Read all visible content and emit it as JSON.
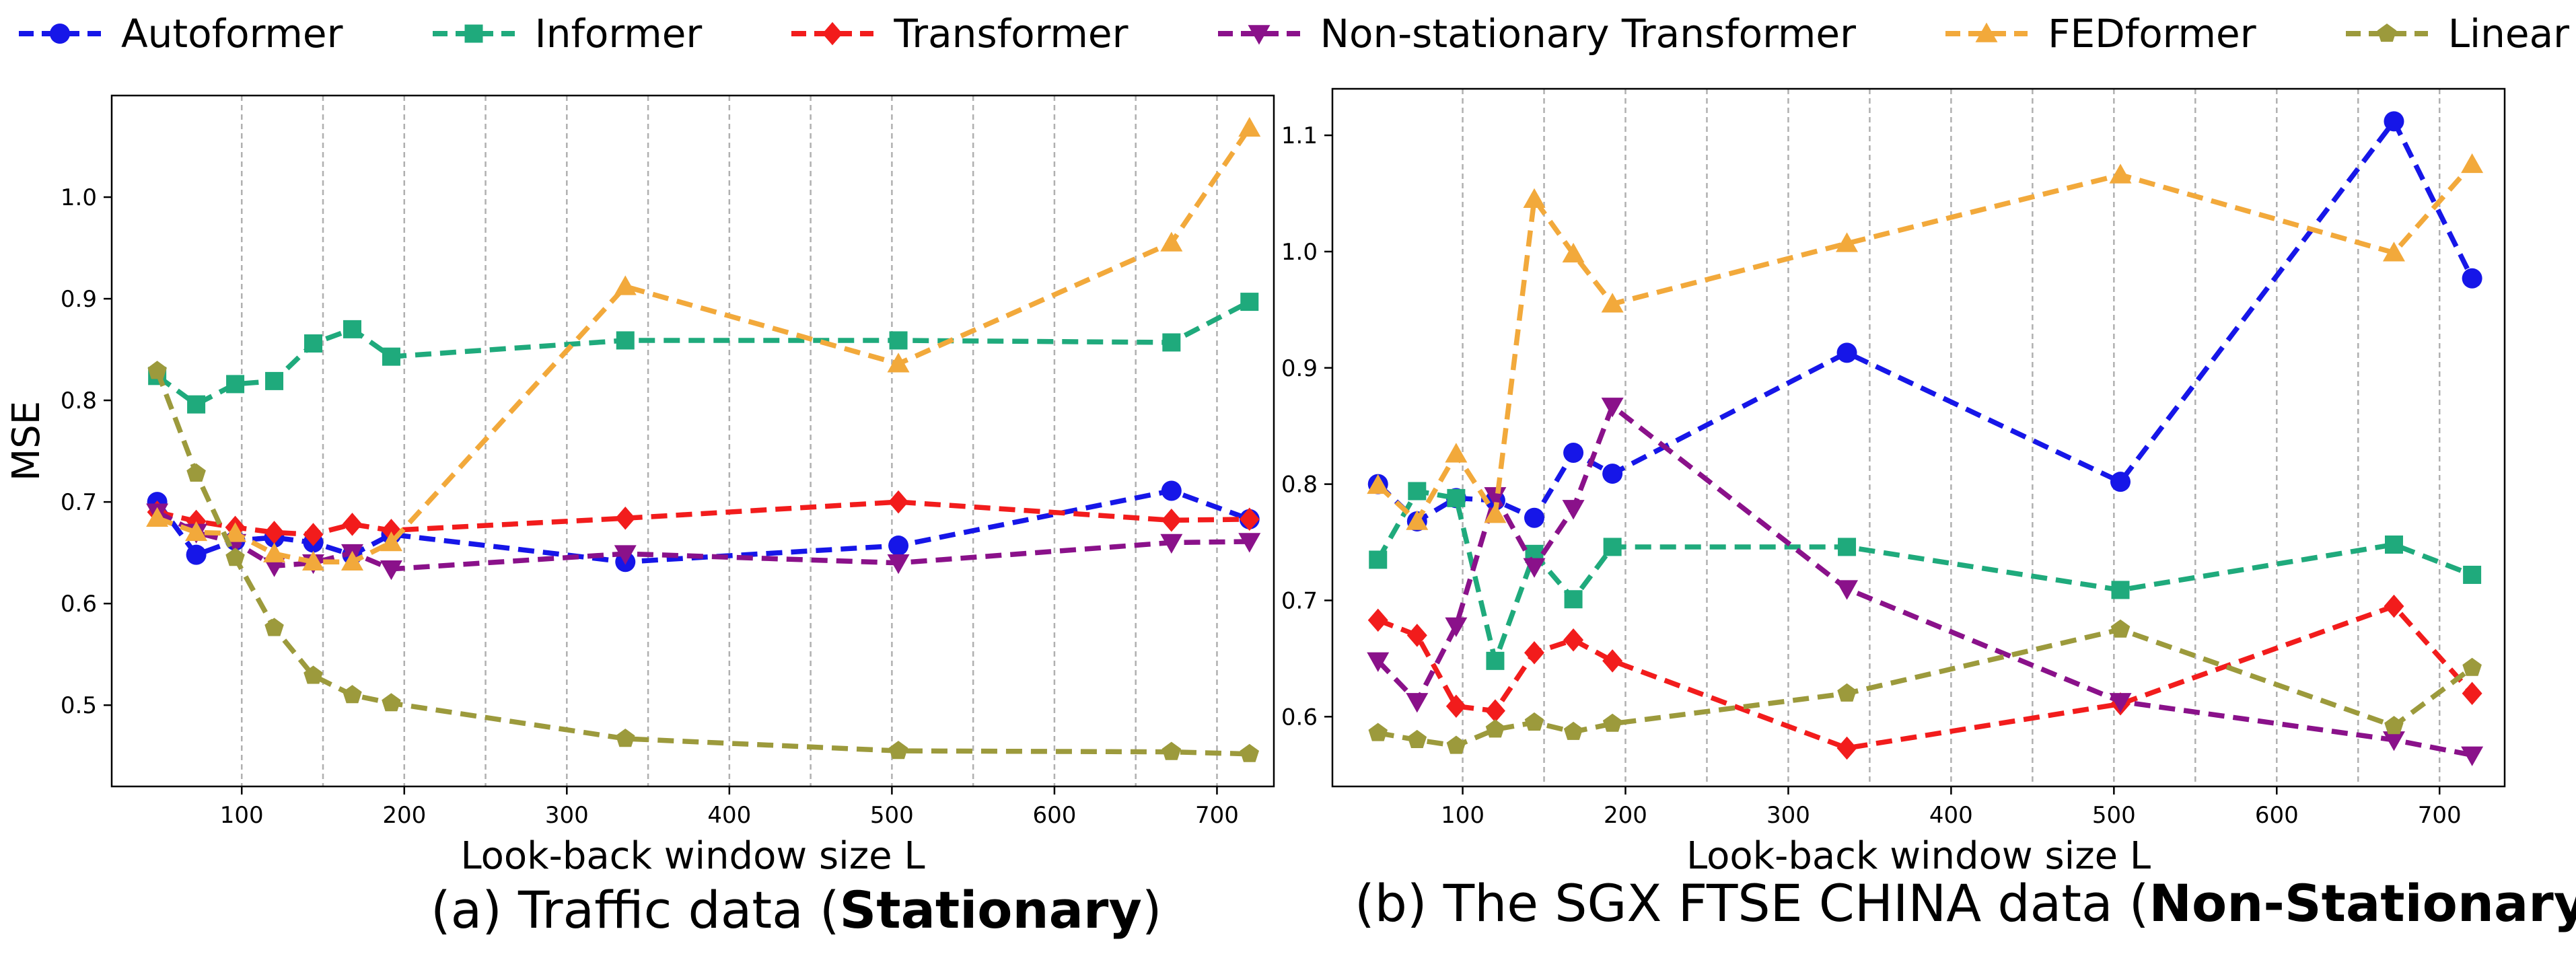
{
  "legend": [
    {
      "name": "Autoformer",
      "color": "#1616e8",
      "marker": "circle"
    },
    {
      "name": "Informer",
      "color": "#1faa7c",
      "marker": "square"
    },
    {
      "name": "Transformer",
      "color": "#f21c1c",
      "marker": "diamond"
    },
    {
      "name": "Non-stationary Transformer",
      "color": "#8a118a",
      "marker": "triangle-down"
    },
    {
      "name": "FEDformer",
      "color": "#f2a93b",
      "marker": "triangle-up"
    },
    {
      "name": "Linear",
      "color": "#9c9a3c",
      "marker": "pentagon"
    }
  ],
  "captions": {
    "a": {
      "prefix": "(a) Traffic data (",
      "bold": "Stationary",
      "suffix": ")"
    },
    "b": {
      "prefix": "(b) The SGX FTSE CHINA data (",
      "bold": "Non-Stationary",
      "suffix": ")"
    }
  },
  "chart_data": [
    {
      "type": "line",
      "xlabel": "Look-back window size L",
      "ylabel": "MSE",
      "x": [
        48,
        72,
        96,
        120,
        144,
        168,
        192,
        336,
        504,
        672,
        720
      ],
      "xlim": [
        20,
        735
      ],
      "ylim": [
        0.42,
        1.1
      ],
      "xticks": [
        100,
        200,
        300,
        400,
        500,
        600,
        700
      ],
      "yticks": [
        0.5,
        0.6,
        0.7,
        0.8,
        0.9,
        1.0
      ],
      "grid": "vertical dashed at x = 100, 150, 200, …, 700",
      "series": [
        {
          "name": "Autoformer",
          "values": [
            0.7,
            0.648,
            0.662,
            0.665,
            0.66,
            0.648,
            0.668,
            0.641,
            0.657,
            0.711,
            0.683
          ]
        },
        {
          "name": "Informer",
          "values": [
            0.824,
            0.796,
            0.816,
            0.819,
            0.856,
            0.87,
            0.843,
            0.859,
            0.859,
            0.857,
            0.897
          ]
        },
        {
          "name": "Transformer",
          "values": [
            0.69,
            0.681,
            0.675,
            0.67,
            0.668,
            0.678,
            0.672,
            0.684,
            0.7,
            0.682,
            0.683
          ]
        },
        {
          "name": "Non-stationary Transformer",
          "values": [
            0.69,
            0.67,
            0.66,
            0.637,
            0.64,
            0.65,
            0.634,
            0.649,
            0.64,
            0.66,
            0.661
          ]
        },
        {
          "name": "FEDformer",
          "values": [
            0.684,
            0.67,
            0.669,
            0.649,
            0.641,
            0.641,
            0.66,
            0.912,
            0.836,
            0.955,
            1.068
          ]
        },
        {
          "name": "Linear",
          "values": [
            0.829,
            0.728,
            0.645,
            0.576,
            0.529,
            0.51,
            0.502,
            0.467,
            0.455,
            0.454,
            0.452
          ]
        }
      ]
    },
    {
      "type": "line",
      "xlabel": "Look-back window size L",
      "ylabel": "MSE",
      "x": [
        48,
        72,
        96,
        120,
        144,
        168,
        192,
        336,
        504,
        672,
        720
      ],
      "xlim": [
        20,
        740
      ],
      "ylim": [
        0.54,
        1.14
      ],
      "xticks": [
        100,
        200,
        300,
        400,
        500,
        600,
        700
      ],
      "yticks": [
        0.6,
        0.7,
        0.8,
        0.9,
        1.0,
        1.1
      ],
      "grid": "vertical dashed at x = 100, 150, 200, …, 700",
      "series": [
        {
          "name": "Autoformer",
          "values": [
            0.8,
            0.768,
            0.788,
            0.786,
            0.771,
            0.827,
            0.809,
            0.913,
            0.802,
            1.112,
            0.977
          ]
        },
        {
          "name": "Informer",
          "values": [
            0.735,
            0.794,
            0.788,
            0.648,
            0.74,
            0.701,
            0.746,
            0.746,
            0.709,
            0.748,
            0.722
          ]
        },
        {
          "name": "Transformer",
          "values": [
            0.683,
            0.67,
            0.609,
            0.605,
            0.655,
            0.666,
            0.648,
            0.573,
            0.611,
            0.695,
            0.62
          ]
        },
        {
          "name": "Non-stationary Transformer",
          "values": [
            0.648,
            0.613,
            0.678,
            0.79,
            0.729,
            0.779,
            0.867,
            0.71,
            0.613,
            0.58,
            0.567
          ]
        },
        {
          "name": "FEDformer",
          "values": [
            0.799,
            0.768,
            0.826,
            0.774,
            1.045,
            0.998,
            0.955,
            1.007,
            1.066,
            0.999,
            1.075
          ]
        },
        {
          "name": "Linear",
          "values": [
            0.586,
            0.58,
            0.575,
            0.589,
            0.595,
            0.587,
            0.594,
            0.62,
            0.675,
            0.592,
            0.642
          ]
        }
      ]
    }
  ]
}
